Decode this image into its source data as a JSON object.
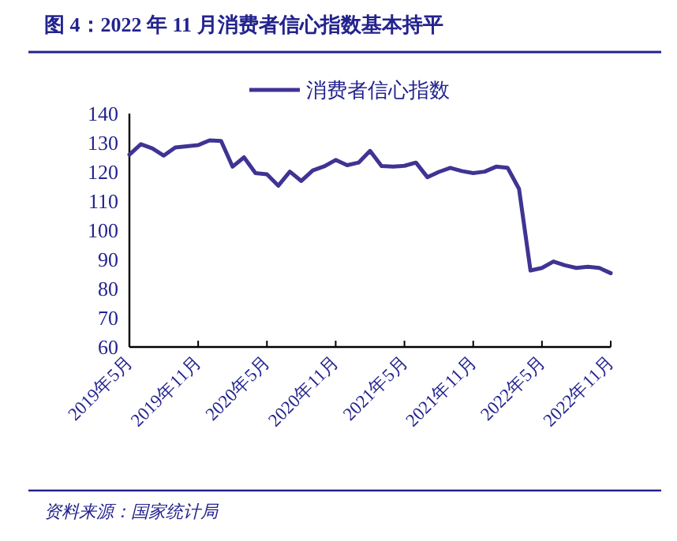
{
  "chart_data": {
    "type": "line",
    "title": "图 4：2022 年 11 月消费者信心指数基本持平",
    "annotations": [
      "资料来源：国家统计局"
    ],
    "x": [
      "2019-05",
      "2019-06",
      "2019-07",
      "2019-08",
      "2019-09",
      "2019-10",
      "2019-11",
      "2019-12",
      "2020-01",
      "2020-02",
      "2020-03",
      "2020-04",
      "2020-05",
      "2020-06",
      "2020-07",
      "2020-08",
      "2020-09",
      "2020-10",
      "2020-11",
      "2020-12",
      "2021-01",
      "2021-02",
      "2021-03",
      "2021-04",
      "2021-05",
      "2021-06",
      "2021-07",
      "2021-08",
      "2021-09",
      "2021-10",
      "2021-11",
      "2021-12",
      "2022-01",
      "2022-02",
      "2022-03",
      "2022-04",
      "2022-05",
      "2022-06",
      "2022-07",
      "2022-08",
      "2022-09",
      "2022-10",
      "2022-11"
    ],
    "series": [
      {
        "name": "消费者信心指数",
        "color": "#3f3493",
        "values": [
          125.9,
          129.5,
          128.1,
          125.6,
          128.4,
          128.8,
          129.2,
          130.8,
          130.6,
          121.8,
          125,
          119.6,
          119.2,
          115.3,
          120.1,
          116.9,
          120.5,
          121.9,
          124.1,
          122.3,
          123.2,
          127.2,
          122,
          121.8,
          122.1,
          123.2,
          118.2,
          120,
          121.4,
          120.3,
          119.6,
          120.1,
          121.8,
          121.4,
          114.2,
          86.2,
          87.1,
          89.3,
          88,
          87.1,
          87.5,
          87.1,
          85.3
        ]
      }
    ],
    "xlim": [
      "2019-05",
      "2022-11"
    ],
    "xticks": [
      {
        "value": "2019-05",
        "label": "2019年5月"
      },
      {
        "value": "2019-11",
        "label": "2019年11月"
      },
      {
        "value": "2020-05",
        "label": "2020年5月"
      },
      {
        "value": "2020-11",
        "label": "2020年11月"
      },
      {
        "value": "2021-05",
        "label": "2021年5月"
      },
      {
        "value": "2021-11",
        "label": "2021年11月"
      },
      {
        "value": "2022-05",
        "label": "2022年5月"
      },
      {
        "value": "2022-11",
        "label": "2022年11月"
      }
    ],
    "ylim": [
      60,
      140
    ],
    "yticks": [
      60,
      70,
      80,
      90,
      100,
      110,
      120,
      130,
      140
    ],
    "grid": false,
    "legend": "top",
    "marker": "none",
    "line_style": "solid"
  }
}
